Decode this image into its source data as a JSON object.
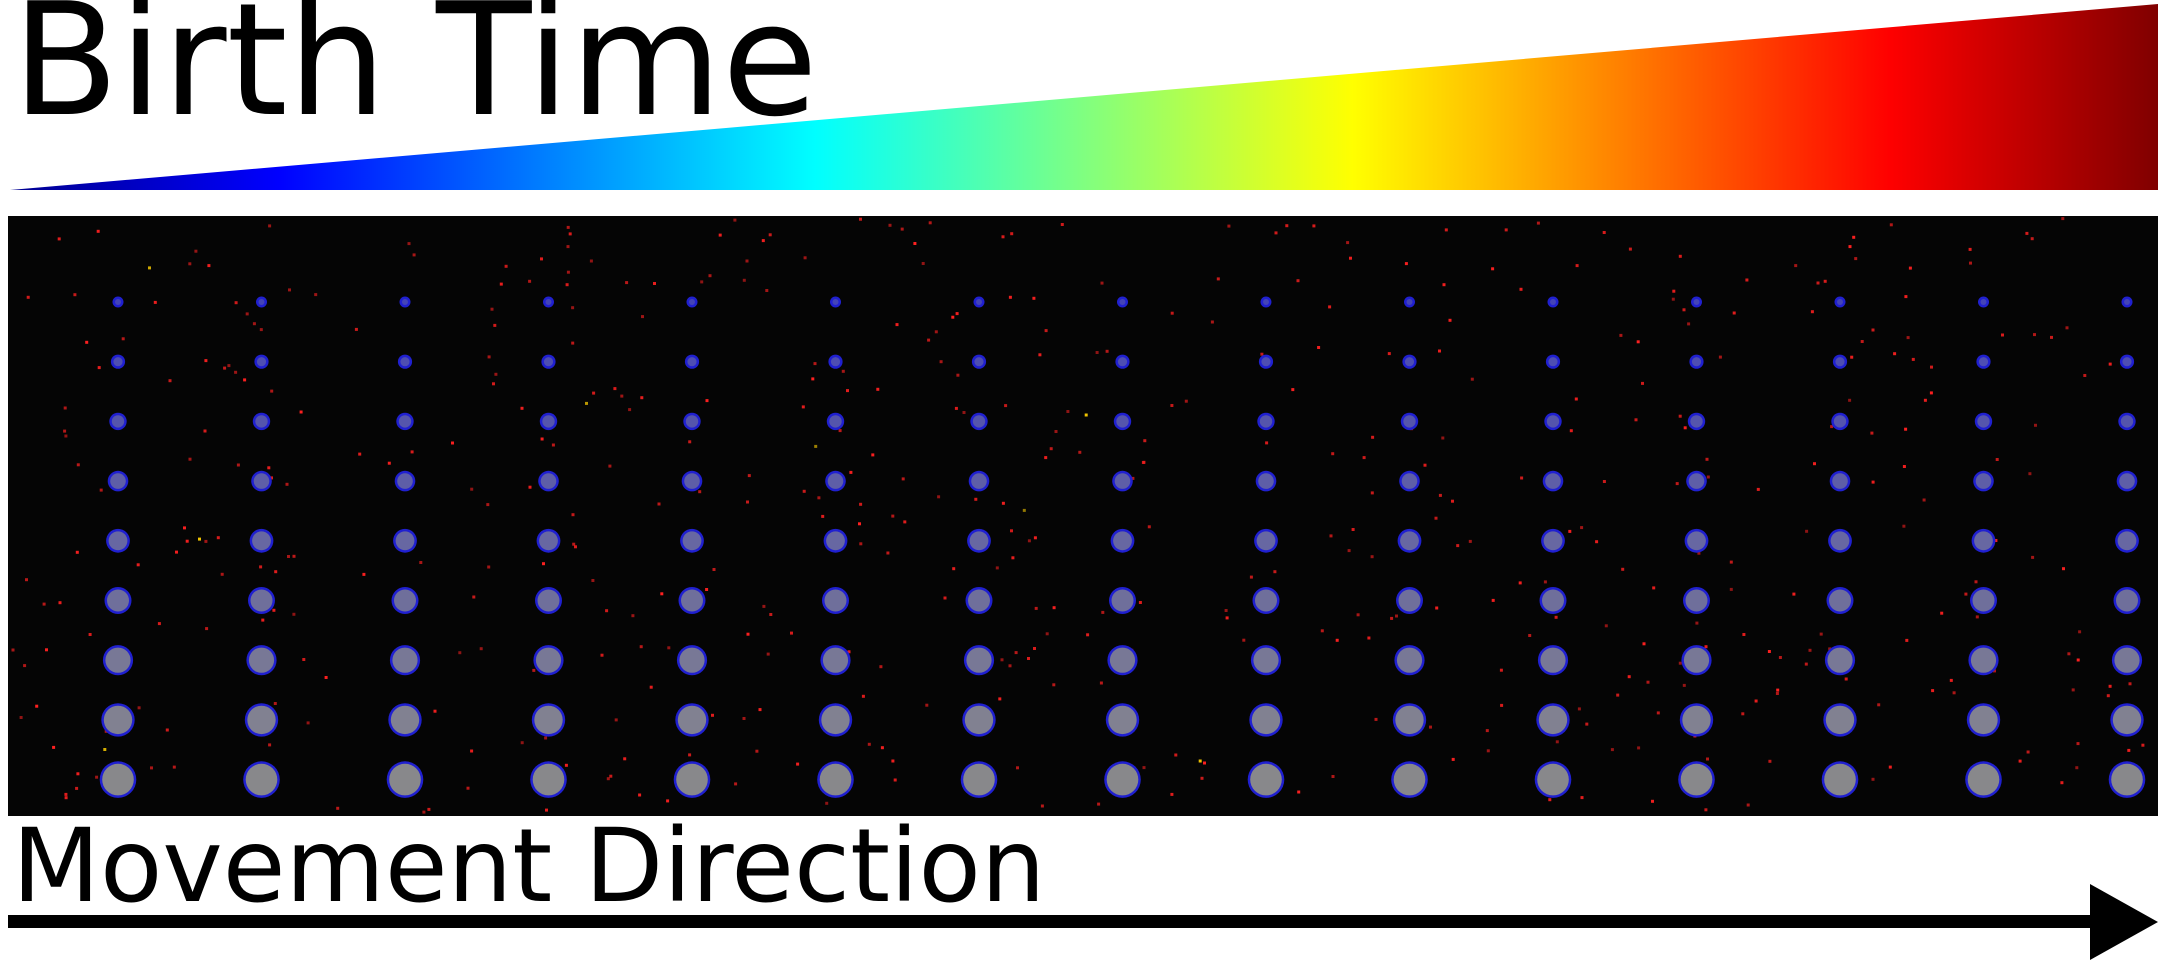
{
  "title": "Birth Time",
  "movement_label": "Movement Direction",
  "colormap": [
    "#00008f",
    "#0000ff",
    "#0080ff",
    "#00ffff",
    "#80ff80",
    "#ffff00",
    "#ff8000",
    "#ff0000",
    "#800000"
  ],
  "colors": {
    "background": "#ffffff",
    "panel": "#050505",
    "particle_core": "#8a8a8a",
    "particle_ring": "#2020d0",
    "noise_dot": "#ff2020",
    "arrow": "#000000"
  },
  "grid": {
    "columns": 15,
    "rows": 9
  }
}
